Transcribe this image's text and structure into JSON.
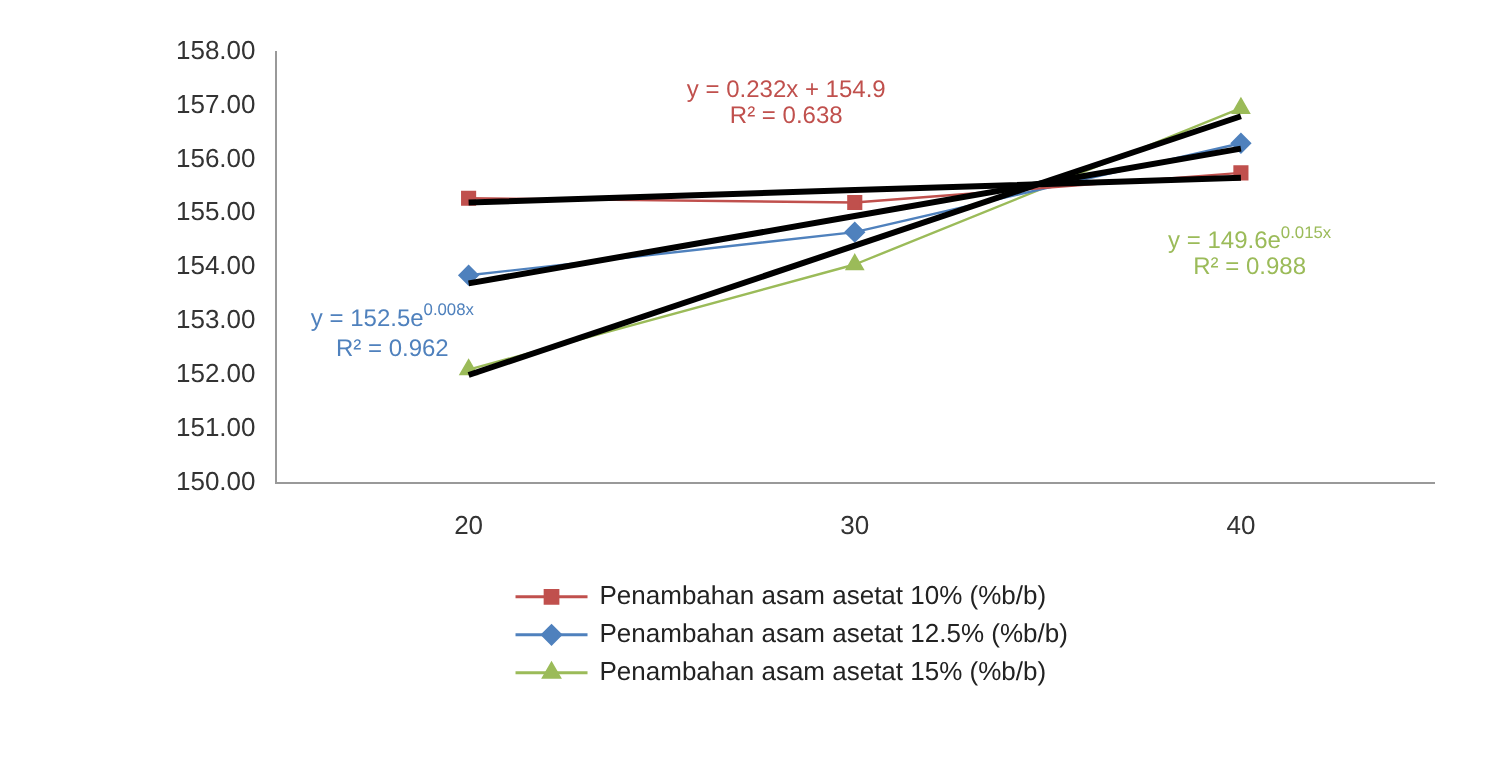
{
  "chart_data": {
    "type": "line",
    "categories": [
      "20",
      "30",
      "40"
    ],
    "series": [
      {
        "name": "Penambahan asam asetat 10% (%b/b)",
        "color": "#c0504d",
        "marker": "square",
        "values": [
          155.28,
          155.2,
          155.75
        ]
      },
      {
        "name": "Penambahan asam asetat 12.5% (%b/b)",
        "color": "#4f81bd",
        "marker": "diamond",
        "values": [
          153.85,
          154.65,
          156.3
        ]
      },
      {
        "name": "Penambahan asam asetat 15% (%b/b)",
        "color": "#9bbb59",
        "marker": "triangle",
        "values": [
          152.1,
          154.05,
          156.95
        ]
      },
      {
        "color": "#000000",
        "marker": "none",
        "values": [
          155.2,
          155.43,
          155.66
        ]
      },
      {
        "color": "#000000",
        "marker": "none",
        "values": [
          153.7,
          154.95,
          156.2
        ]
      },
      {
        "color": "#000000",
        "marker": "none",
        "values": [
          152.0,
          154.4,
          156.8
        ]
      }
    ],
    "ylim": [
      150,
      158
    ],
    "yticks": [
      {
        "value": 150,
        "label": "150.00"
      },
      {
        "value": 151,
        "label": "151.00"
      },
      {
        "value": 152,
        "label": "152.00"
      },
      {
        "value": 153,
        "label": "153.00"
      },
      {
        "value": 154,
        "label": "154.00"
      },
      {
        "value": 155,
        "label": "155.00"
      },
      {
        "value": 156,
        "label": "156.00"
      },
      {
        "value": 157,
        "label": "157.00"
      },
      {
        "value": 158,
        "label": "158.00"
      }
    ],
    "grid": false,
    "legend": "bottom",
    "line_style": "solid",
    "annotations": [
      "y = 0.232x + 154.9",
      "R² = 0.638",
      "y = 152.5e$^{0.008x}$",
      "R² = 0.962",
      "y = 149.6e$^{0.015x}$",
      "R² = 0.988"
    ]
  }
}
